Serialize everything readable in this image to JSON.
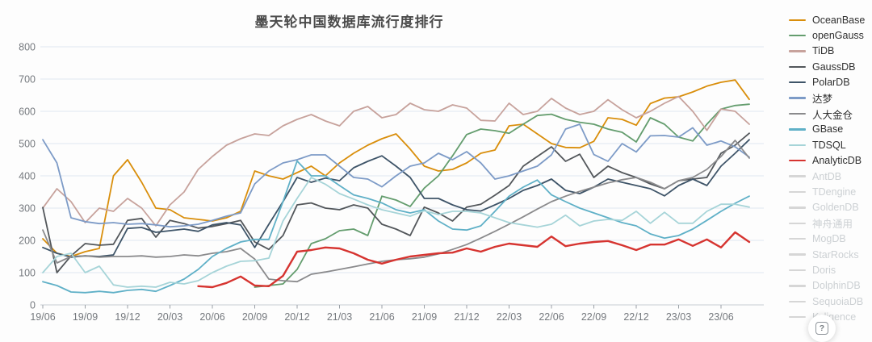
{
  "title": "墨天轮中国数据库流行度排行",
  "help_button": {
    "label": "?"
  },
  "chart_data": {
    "type": "line",
    "title": "墨天轮中国数据库流行度排行",
    "xlabel": "",
    "ylabel": "",
    "ylim": [
      0,
      800
    ],
    "y_ticks": [
      0,
      100,
      200,
      300,
      400,
      500,
      600,
      700,
      800
    ],
    "grid": true,
    "legend_position": "right",
    "x_tick_labels": [
      "19/06",
      "19/09",
      "19/12",
      "20/03",
      "20/06",
      "20/09",
      "20/12",
      "21/03",
      "21/06",
      "21/09",
      "21/12",
      "22/03",
      "22/06",
      "22/09",
      "22/12",
      "23/03",
      "23/06"
    ],
    "months_per_tick": 3,
    "series": [
      {
        "name": "OceanBase",
        "color": "#d98e0b",
        "active": true,
        "values": [
          205,
          160,
          150,
          165,
          175,
          400,
          450,
          380,
          300,
          295,
          270,
          265,
          260,
          270,
          290,
          415,
          400,
          390,
          410,
          430,
          400,
          440,
          470,
          495,
          515,
          530,
          483,
          430,
          415,
          420,
          440,
          470,
          480,
          555,
          560,
          530,
          500,
          488,
          487,
          507,
          580,
          575,
          557,
          624,
          641,
          645,
          660,
          678,
          690,
          697,
          637
        ]
      },
      {
        "name": "openGauss",
        "color": "#649d6e",
        "active": true,
        "values": [
          null,
          null,
          null,
          null,
          null,
          null,
          null,
          null,
          null,
          null,
          null,
          null,
          null,
          null,
          null,
          55,
          60,
          65,
          110,
          190,
          205,
          230,
          235,
          215,
          337,
          325,
          305,
          362,
          400,
          462,
          528,
          545,
          540,
          532,
          560,
          587,
          591,
          575,
          566,
          560,
          545,
          535,
          505,
          580,
          560,
          520,
          508,
          560,
          607,
          618,
          622
        ]
      },
      {
        "name": "TiDB",
        "color": "#c7a29c",
        "active": true,
        "values": [
          300,
          360,
          320,
          255,
          300,
          290,
          330,
          300,
          245,
          310,
          350,
          420,
          460,
          495,
          515,
          530,
          525,
          555,
          575,
          590,
          570,
          555,
          600,
          615,
          580,
          590,
          625,
          605,
          600,
          620,
          610,
          572,
          570,
          625,
          590,
          600,
          640,
          610,
          590,
          600,
          636,
          605,
          580,
          600,
          625,
          646,
          600,
          541,
          607,
          600,
          560
        ]
      },
      {
        "name": "GaussDB",
        "color": "#53575b",
        "active": true,
        "values": [
          302,
          100,
          152,
          190,
          185,
          188,
          262,
          268,
          210,
          262,
          252,
          238,
          243,
          252,
          262,
          195,
          172,
          215,
          310,
          316,
          300,
          295,
          310,
          300,
          250,
          235,
          215,
          303,
          285,
          260,
          303,
          312,
          340,
          370,
          430,
          460,
          490,
          445,
          467,
          395,
          430,
          410,
          395,
          375,
          360,
          385,
          390,
          395,
          470,
          495,
          532
        ]
      },
      {
        "name": "PolarDB",
        "color": "#3e5468",
        "active": true,
        "values": [
          178,
          160,
          148,
          152,
          150,
          155,
          237,
          240,
          225,
          230,
          235,
          228,
          248,
          255,
          248,
          178,
          250,
          320,
          395,
          380,
          393,
          385,
          425,
          445,
          462,
          430,
          395,
          330,
          330,
          310,
          295,
          291,
          310,
          330,
          355,
          370,
          390,
          355,
          345,
          365,
          390,
          380,
          370,
          360,
          338,
          370,
          390,
          370,
          430,
          470,
          512
        ]
      },
      {
        "name": "达梦",
        "color": "#7d9bc7",
        "active": true,
        "values": [
          512,
          440,
          270,
          258,
          252,
          255,
          250,
          252,
          248,
          242,
          245,
          250,
          262,
          275,
          285,
          375,
          415,
          440,
          450,
          465,
          465,
          430,
          395,
          390,
          366,
          400,
          430,
          440,
          470,
          450,
          475,
          440,
          390,
          400,
          415,
          430,
          465,
          545,
          560,
          466,
          445,
          500,
          474,
          524,
          525,
          520,
          549,
          495,
          508,
          490,
          458
        ]
      },
      {
        "name": "人大金仓",
        "color": "#8a8a8c",
        "active": true,
        "values": [
          232,
          130,
          150,
          152,
          148,
          150,
          150,
          152,
          148,
          150,
          155,
          152,
          160,
          165,
          175,
          142,
          80,
          75,
          72,
          95,
          102,
          110,
          118,
          127,
          135,
          140,
          143,
          148,
          158,
          172,
          187,
          207,
          228,
          250,
          273,
          297,
          320,
          337,
          352,
          365,
          378,
          388,
          395,
          380,
          360,
          385,
          395,
          420,
          460,
          510,
          455
        ]
      },
      {
        "name": "GBase",
        "color": "#5fb0c7",
        "active": true,
        "values": [
          72,
          60,
          40,
          38,
          42,
          38,
          45,
          48,
          42,
          60,
          80,
          110,
          150,
          175,
          195,
          203,
          203,
          320,
          446,
          400,
          400,
          370,
          341,
          330,
          316,
          295,
          285,
          295,
          260,
          235,
          232,
          245,
          290,
          337,
          365,
          387,
          341,
          320,
          300,
          285,
          270,
          255,
          245,
          220,
          207,
          215,
          235,
          262,
          290,
          315,
          337
        ]
      },
      {
        "name": "TDSQL",
        "color": "#a6d4d8",
        "active": true,
        "values": [
          100,
          150,
          160,
          100,
          120,
          62,
          55,
          58,
          55,
          70,
          65,
          75,
          100,
          120,
          135,
          137,
          145,
          260,
          330,
          395,
          374,
          345,
          328,
          310,
          295,
          285,
          275,
          292,
          280,
          290,
          290,
          285,
          270,
          255,
          248,
          241,
          250,
          278,
          245,
          260,
          265,
          262,
          290,
          253,
          287,
          253,
          253,
          290,
          312,
          312,
          303
        ]
      },
      {
        "name": "AnalyticDB",
        "color": "#d63430",
        "active": true,
        "values": [
          null,
          null,
          null,
          null,
          null,
          null,
          null,
          null,
          null,
          null,
          null,
          58,
          55,
          68,
          88,
          60,
          58,
          90,
          165,
          170,
          178,
          175,
          160,
          140,
          128,
          140,
          150,
          155,
          160,
          162,
          175,
          165,
          180,
          190,
          185,
          180,
          212,
          182,
          190,
          195,
          198,
          185,
          170,
          187,
          187,
          203,
          183,
          203,
          178,
          225,
          195
        ]
      },
      {
        "name": "AntDB",
        "color": "#d6d6d6",
        "active": false,
        "values": []
      },
      {
        "name": "TDengine",
        "color": "#d6d6d6",
        "active": false,
        "values": []
      },
      {
        "name": "GoldenDB",
        "color": "#d6d6d6",
        "active": false,
        "values": []
      },
      {
        "name": "神舟通用",
        "color": "#d6d6d6",
        "active": false,
        "values": []
      },
      {
        "name": "MogDB",
        "color": "#d6d6d6",
        "active": false,
        "values": []
      },
      {
        "name": "StarRocks",
        "color": "#d6d6d6",
        "active": false,
        "values": []
      },
      {
        "name": "Doris",
        "color": "#d6d6d6",
        "active": false,
        "values": []
      },
      {
        "name": "DolphinDB",
        "color": "#d6d6d6",
        "active": false,
        "values": []
      },
      {
        "name": "SequoiaDB",
        "color": "#d6d6d6",
        "active": false,
        "values": []
      },
      {
        "name": "Kyligence",
        "color": "#d6d6d6",
        "active": false,
        "values": []
      }
    ]
  }
}
